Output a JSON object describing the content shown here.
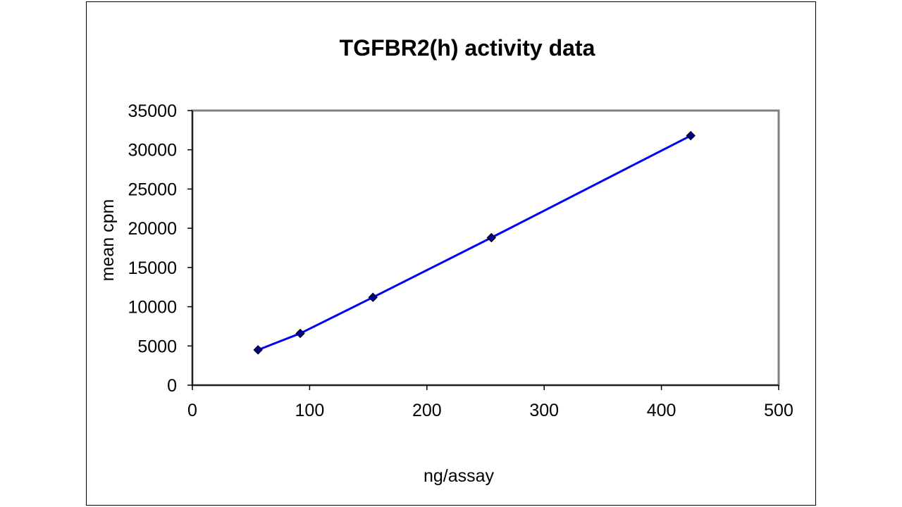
{
  "chart_data": {
    "type": "line",
    "title": "TGFBR2(h) activity data",
    "xlabel": "ng/assay",
    "ylabel": "mean cpm",
    "xlim": [
      0,
      500
    ],
    "ylim": [
      0,
      35000
    ],
    "x_ticks": [
      0,
      100,
      200,
      300,
      400,
      500
    ],
    "y_ticks": [
      0,
      5000,
      10000,
      15000,
      20000,
      25000,
      30000,
      35000
    ],
    "grid": false,
    "legend": "none",
    "series": [
      {
        "x": [
          56,
          92,
          154,
          255,
          425
        ],
        "y": [
          4500,
          6600,
          11200,
          18800,
          31800
        ],
        "line_color": "#0000ff",
        "marker": "diamond",
        "marker_color": "#00008b"
      }
    ]
  }
}
